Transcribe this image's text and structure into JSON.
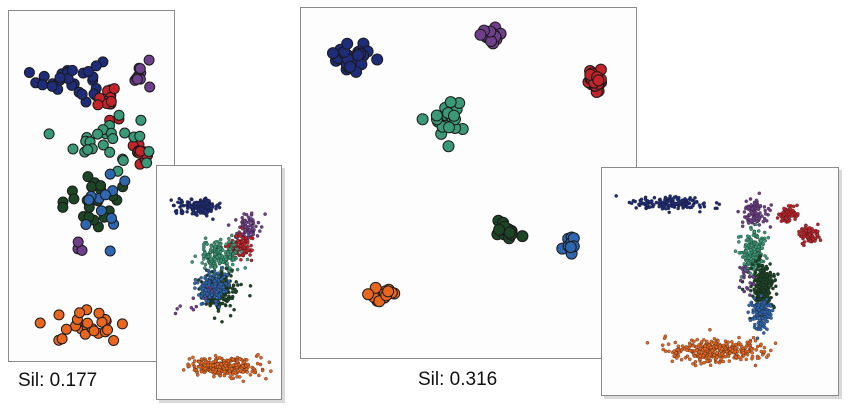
{
  "colors": {
    "navy": "#1f2c7a",
    "purple": "#6f3f8c",
    "red": "#c4232a",
    "teal": "#3a9a78",
    "darkgreen": "#1c4526",
    "blue": "#2f66b0",
    "orange": "#e8661e"
  },
  "captions": {
    "left": "Sil: 0.177",
    "middle": "Sil: 0.316"
  },
  "chart_data": [
    {
      "type": "scatter",
      "id": "left-main",
      "title": "",
      "subtitle": "Sil: 0.177",
      "xlim": [
        0,
        100
      ],
      "ylim": [
        0,
        100
      ],
      "clusters": [
        {
          "color": "navy",
          "cx": 36,
          "cy": 82,
          "sx": 20,
          "sy": 6,
          "n": 30
        },
        {
          "color": "purple",
          "cx": 83,
          "cy": 84,
          "sx": 6,
          "sy": 5,
          "n": 10
        },
        {
          "color": "red",
          "cx": 62,
          "cy": 76,
          "sx": 8,
          "sy": 4,
          "n": 14
        },
        {
          "color": "red",
          "cx": 82,
          "cy": 60,
          "sx": 6,
          "sy": 3,
          "n": 14
        },
        {
          "color": "teal",
          "cx": 60,
          "cy": 64,
          "sx": 20,
          "sy": 8,
          "n": 26
        },
        {
          "color": "darkgreen",
          "cx": 50,
          "cy": 46,
          "sx": 22,
          "sy": 8,
          "n": 22
        },
        {
          "color": "blue",
          "cx": 58,
          "cy": 44,
          "sx": 18,
          "sy": 8,
          "n": 12
        },
        {
          "color": "purple",
          "cx": 42,
          "cy": 30,
          "sx": 10,
          "sy": 8,
          "n": 3
        },
        {
          "color": "orange",
          "cx": 45,
          "cy": 8,
          "sx": 26,
          "sy": 4,
          "n": 26
        }
      ]
    },
    {
      "type": "scatter",
      "id": "left-inset",
      "title": "",
      "xlim": [
        0,
        100
      ],
      "ylim": [
        0,
        100
      ],
      "clusters": [
        {
          "color": "navy",
          "cx": 32,
          "cy": 85,
          "sx": 18,
          "sy": 3,
          "n": 170
        },
        {
          "color": "purple",
          "cx": 76,
          "cy": 76,
          "sx": 10,
          "sy": 6,
          "n": 70
        },
        {
          "color": "red",
          "cx": 68,
          "cy": 66,
          "sx": 11,
          "sy": 5,
          "n": 110
        },
        {
          "color": "teal",
          "cx": 50,
          "cy": 62,
          "sx": 16,
          "sy": 7,
          "n": 200
        },
        {
          "color": "darkgreen",
          "cx": 50,
          "cy": 46,
          "sx": 14,
          "sy": 7,
          "n": 220
        },
        {
          "color": "blue",
          "cx": 44,
          "cy": 48,
          "sx": 12,
          "sy": 6,
          "n": 160
        },
        {
          "color": "purple",
          "cx": 30,
          "cy": 40,
          "sx": 16,
          "sy": 10,
          "n": 10
        },
        {
          "color": "orange",
          "cx": 55,
          "cy": 11,
          "sx": 28,
          "sy": 4,
          "n": 320
        }
      ]
    },
    {
      "type": "scatter",
      "id": "middle-main",
      "title": "",
      "subtitle": "Sil: 0.316",
      "xlim": [
        0,
        100
      ],
      "ylim": [
        0,
        100
      ],
      "clusters": [
        {
          "color": "navy",
          "cx": 14,
          "cy": 88,
          "sx": 6,
          "sy": 3.5,
          "n": 34
        },
        {
          "color": "purple",
          "cx": 57,
          "cy": 94,
          "sx": 2.5,
          "sy": 2.5,
          "n": 22
        },
        {
          "color": "red",
          "cx": 90,
          "cy": 80,
          "sx": 2.4,
          "sy": 3.5,
          "n": 22
        },
        {
          "color": "teal",
          "cx": 43,
          "cy": 69,
          "sx": 5,
          "sy": 4.5,
          "n": 20
        },
        {
          "color": "darkgreen",
          "cx": 62,
          "cy": 36,
          "sx": 3.5,
          "sy": 3.5,
          "n": 18
        },
        {
          "color": "blue",
          "cx": 82,
          "cy": 31,
          "sx": 2.2,
          "sy": 2.4,
          "n": 10
        },
        {
          "color": "orange",
          "cx": 22,
          "cy": 17,
          "sx": 5,
          "sy": 2,
          "n": 16
        }
      ]
    },
    {
      "type": "scatter",
      "id": "right-inset",
      "title": "",
      "xlim": [
        0,
        100
      ],
      "ylim": [
        0,
        100
      ],
      "clusters": [
        {
          "color": "navy",
          "cx": 28,
          "cy": 87,
          "sx": 16,
          "sy": 3,
          "n": 150
        },
        {
          "color": "purple",
          "cx": 66,
          "cy": 83,
          "sx": 6,
          "sy": 6,
          "n": 90
        },
        {
          "color": "red",
          "cx": 81,
          "cy": 82,
          "sx": 4,
          "sy": 3.5,
          "n": 80
        },
        {
          "color": "red",
          "cx": 90,
          "cy": 72,
          "sx": 4,
          "sy": 4,
          "n": 80
        },
        {
          "color": "teal",
          "cx": 65,
          "cy": 64,
          "sx": 5,
          "sy": 9,
          "n": 200
        },
        {
          "color": "darkgreen",
          "cx": 69,
          "cy": 48,
          "sx": 5,
          "sy": 9,
          "n": 260
        },
        {
          "color": "blue",
          "cx": 69,
          "cy": 35,
          "sx": 4,
          "sy": 7,
          "n": 150
        },
        {
          "color": "purple",
          "cx": 62,
          "cy": 52,
          "sx": 4,
          "sy": 8,
          "n": 20
        },
        {
          "color": "orange",
          "cx": 48,
          "cy": 17,
          "sx": 20,
          "sy": 5,
          "n": 320
        }
      ]
    }
  ]
}
